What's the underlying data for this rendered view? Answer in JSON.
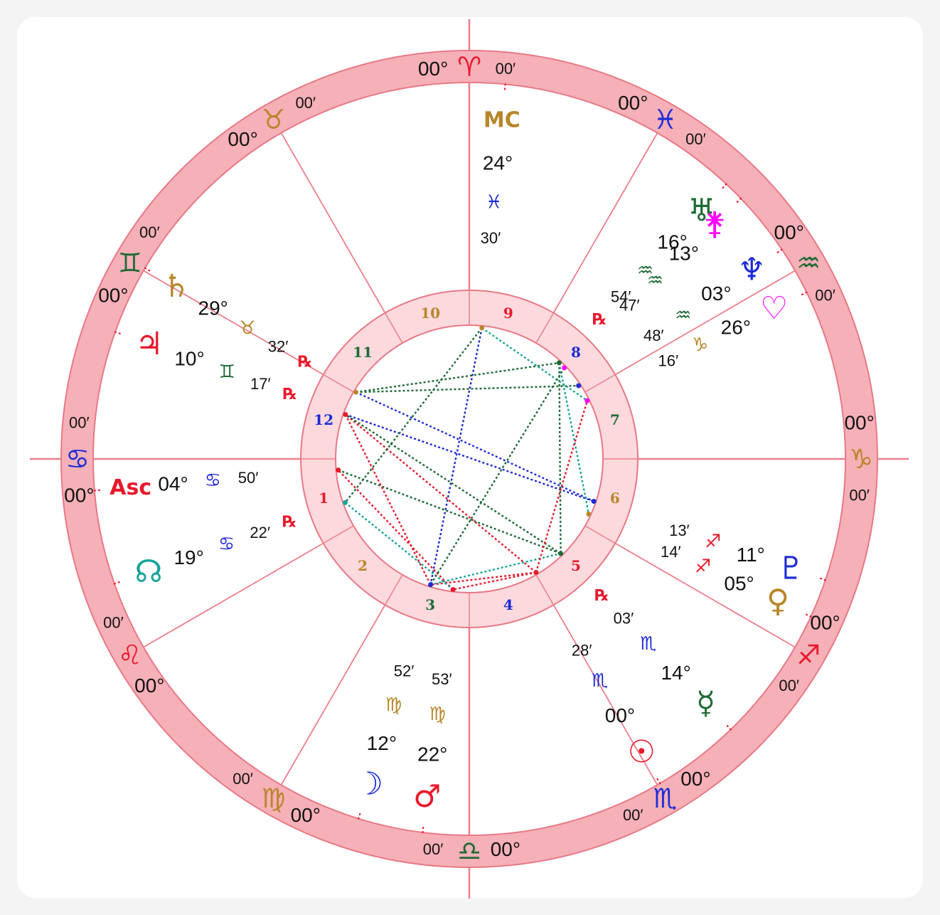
{
  "chart": {
    "zodiac_ring": [
      {
        "sign": "aries",
        "glyph": "♈",
        "color": "#e8192c",
        "deg": "00°",
        "min": "00′"
      },
      {
        "sign": "taurus",
        "glyph": "♉",
        "color": "#b8862b",
        "deg": "00°",
        "min": "00′"
      },
      {
        "sign": "gemini",
        "glyph": "♊",
        "color": "#1f6b35",
        "deg": "00°",
        "min": "00′"
      },
      {
        "sign": "cancer",
        "glyph": "♋",
        "color": "#1d2bd6",
        "deg": "00°",
        "min": "00′"
      },
      {
        "sign": "leo",
        "glyph": "♌",
        "color": "#e8192c",
        "deg": "00°",
        "min": "00′"
      },
      {
        "sign": "virgo",
        "glyph": "♍",
        "color": "#b8862b",
        "deg": "00°",
        "min": "00′"
      },
      {
        "sign": "libra",
        "glyph": "♎",
        "color": "#1f6b35",
        "deg": "00°",
        "min": "00′"
      },
      {
        "sign": "scorpio",
        "glyph": "♏",
        "color": "#1d2bd6",
        "deg": "00°",
        "min": "00′"
      },
      {
        "sign": "sagittarius",
        "glyph": "♐",
        "color": "#e8192c",
        "deg": "00°",
        "min": "00′"
      },
      {
        "sign": "capricorn",
        "glyph": "♑",
        "color": "#b8862b",
        "deg": "00°",
        "min": "00′"
      },
      {
        "sign": "aquarius",
        "glyph": "♒",
        "color": "#1f6b35",
        "deg": "00°",
        "min": "00′"
      },
      {
        "sign": "pisces",
        "glyph": "♓",
        "color": "#1d2bd6",
        "deg": "00°",
        "min": "00′"
      }
    ],
    "houses": [
      {
        "n": "1",
        "color": "#e8192c"
      },
      {
        "n": "2",
        "color": "#b8862b"
      },
      {
        "n": "3",
        "color": "#1f6b35"
      },
      {
        "n": "4",
        "color": "#1d2bd6"
      },
      {
        "n": "5",
        "color": "#e8192c"
      },
      {
        "n": "6",
        "color": "#b8862b"
      },
      {
        "n": "7",
        "color": "#1f6b35"
      },
      {
        "n": "8",
        "color": "#1d2bd6"
      },
      {
        "n": "9",
        "color": "#e8192c"
      },
      {
        "n": "10",
        "color": "#b8862b"
      },
      {
        "n": "11",
        "color": "#1f6b35"
      },
      {
        "n": "12",
        "color": "#1d2bd6"
      }
    ],
    "points": [
      {
        "name": "ascendant",
        "glyph": "Asc",
        "color": "#e8192c",
        "deg": "04°",
        "sign": "♋",
        "sign_color": "#1d2bd6",
        "min": "50′",
        "retro": false
      },
      {
        "name": "midheaven",
        "glyph": "MC",
        "color": "#b8862b",
        "deg": "24°",
        "sign": "♓",
        "sign_color": "#1d2bd6",
        "min": "30′",
        "retro": false
      },
      {
        "name": "sun",
        "glyph": "☉",
        "color": "#e8192c",
        "deg": "00°",
        "sign": "♏",
        "sign_color": "#1d2bd6",
        "min": "28′",
        "retro": false
      },
      {
        "name": "moon",
        "glyph": "☽",
        "color": "#1d2bd6",
        "deg": "12°",
        "sign": "♍",
        "sign_color": "#b8862b",
        "min": "52′",
        "retro": false
      },
      {
        "name": "mercury",
        "glyph": "☿",
        "color": "#1f6b35",
        "deg": "14°",
        "sign": "♏",
        "sign_color": "#1d2bd6",
        "min": "03′",
        "retro": true
      },
      {
        "name": "venus",
        "glyph": "♀",
        "color": "#b8862b",
        "deg": "05°",
        "sign": "♐",
        "sign_color": "#e8192c",
        "min": "14′",
        "retro": false
      },
      {
        "name": "mars",
        "glyph": "♂",
        "color": "#e8192c",
        "deg": "22°",
        "sign": "♍",
        "sign_color": "#b8862b",
        "min": "53′",
        "retro": false
      },
      {
        "name": "jupiter",
        "glyph": "♃",
        "color": "#e8192c",
        "deg": "10°",
        "sign": "♊",
        "sign_color": "#1f6b35",
        "min": "17′",
        "retro": true
      },
      {
        "name": "saturn",
        "glyph": "♄",
        "color": "#b8862b",
        "deg": "29°",
        "sign": "♉",
        "sign_color": "#b8862b",
        "min": "32′",
        "retro": true
      },
      {
        "name": "uranus",
        "glyph": "♅",
        "color": "#1f6b35",
        "deg": "16°",
        "sign": "♒",
        "sign_color": "#1f6b35",
        "min": "54′",
        "retro": true
      },
      {
        "name": "neptune",
        "glyph": "♆",
        "color": "#1d2bd6",
        "deg": "03°",
        "sign": "♒",
        "sign_color": "#1f6b35",
        "min": "48′",
        "retro": false
      },
      {
        "name": "pluto",
        "glyph": "♇",
        "color": "#1d2bd6",
        "deg": "11°",
        "sign": "♐",
        "sign_color": "#e8192c",
        "min": "13′",
        "retro": false
      },
      {
        "name": "north-node",
        "glyph": "☊",
        "color": "#1aa39b",
        "deg": "19°",
        "sign": "♋",
        "sign_color": "#1d2bd6",
        "min": "22′",
        "retro": true
      },
      {
        "name": "lilith",
        "glyph": "⚵",
        "color": "#ff00ff",
        "deg": "13°",
        "sign": "♒",
        "sign_color": "#1f6b35",
        "min": "47′",
        "retro": false
      },
      {
        "name": "fortune",
        "glyph": "♡",
        "color": "#ff00ff",
        "deg": "26°",
        "sign": "♑",
        "sign_color": "#b8862b",
        "min": "16′",
        "retro": false
      }
    ],
    "retro_glyph": "℞",
    "colors": {
      "ring": "#f5b0b8",
      "ring_stroke": "#e87985",
      "inner_ring": "#fbd9dd"
    }
  }
}
